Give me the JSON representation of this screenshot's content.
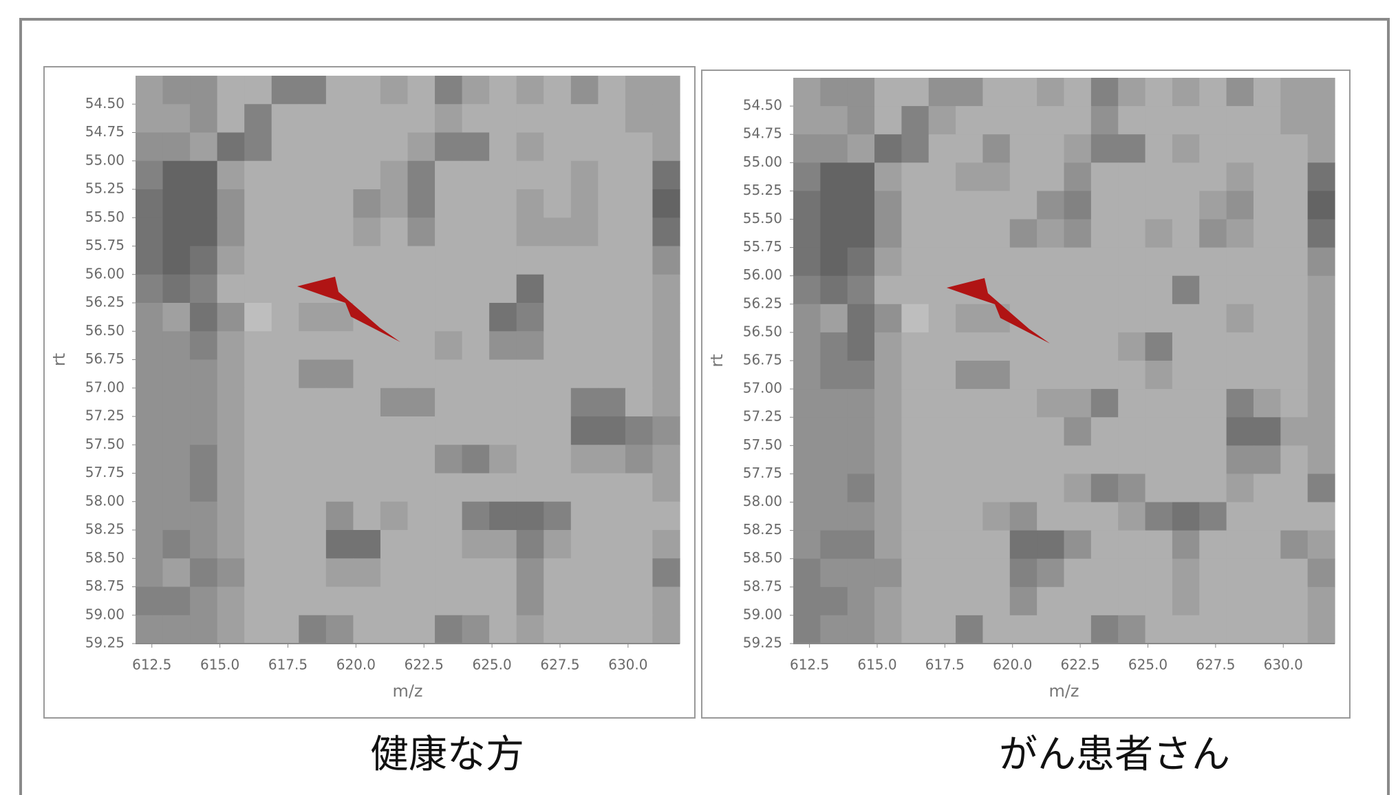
{
  "chart_data": [
    {
      "type": "heatmap",
      "caption": "健康な方",
      "xlabel": "m/z",
      "ylabel": "rt",
      "xlim": [
        611.9,
        631.9
      ],
      "ylim": [
        54.25,
        59.25
      ],
      "xticks": [
        612.5,
        {
          "value": 615.0,
          "label": "615.0"
        },
        617.5,
        {
          "value": 620.0,
          "label": "620.0"
        },
        622.5,
        {
          "value": 625.0,
          "label": "625.0"
        },
        627.5,
        {
          "value": 630.0,
          "label": "630.0"
        }
      ],
      "yticks": [
        {
          "value": 54.5,
          "label": "54.50"
        },
        {
          "value": 54.75,
          "label": "54.75"
        },
        {
          "value": 55.0,
          "label": "55.00"
        },
        {
          "value": 55.25,
          "label": "55.25"
        },
        {
          "value": 55.5,
          "label": "55.50"
        },
        {
          "value": 55.75,
          "label": "55.75"
        },
        {
          "value": 56.0,
          "label": "56.00"
        },
        {
          "value": 56.25,
          "label": "56.25"
        },
        {
          "value": 56.5,
          "label": "56.50"
        },
        {
          "value": 56.75,
          "label": "56.75"
        },
        {
          "value": 57.0,
          "label": "57.00"
        },
        {
          "value": 57.25,
          "label": "57.25"
        },
        {
          "value": 57.5,
          "label": "57.50"
        },
        {
          "value": 57.75,
          "label": "57.75"
        },
        {
          "value": 58.0,
          "label": "58.00"
        },
        {
          "value": 58.25,
          "label": "58.25"
        },
        {
          "value": 58.5,
          "label": "58.50"
        },
        {
          "value": 58.75,
          "label": "58.75"
        },
        {
          "value": 59.0,
          "label": "59.00"
        },
        {
          "value": 59.25,
          "label": "59.25"
        }
      ],
      "zlim": [
        0,
        9
      ],
      "colors": [
        "#dcdcdc",
        "#555555"
      ],
      "z": [
        [
          4,
          5,
          5,
          3,
          3,
          6,
          6,
          3,
          3,
          4,
          3,
          6,
          4,
          3,
          4,
          3,
          5,
          3,
          4,
          4
        ],
        [
          4,
          4,
          5,
          3,
          6,
          3,
          3,
          3,
          3,
          3,
          3,
          4,
          3,
          3,
          3,
          3,
          3,
          3,
          4,
          4
        ],
        [
          5,
          5,
          4,
          7,
          6,
          3,
          3,
          3,
          3,
          3,
          4,
          6,
          6,
          3,
          4,
          3,
          3,
          3,
          3,
          4
        ],
        [
          6,
          8,
          8,
          4,
          3,
          3,
          3,
          3,
          3,
          4,
          6,
          3,
          3,
          3,
          3,
          3,
          4,
          3,
          3,
          7
        ],
        [
          7,
          8,
          8,
          5,
          3,
          3,
          3,
          3,
          5,
          4,
          6,
          3,
          3,
          3,
          4,
          3,
          4,
          3,
          3,
          8
        ],
        [
          7,
          8,
          8,
          5,
          3,
          3,
          3,
          3,
          4,
          3,
          5,
          3,
          3,
          3,
          4,
          4,
          4,
          3,
          3,
          7
        ],
        [
          7,
          8,
          7,
          4,
          3,
          3,
          3,
          3,
          3,
          3,
          3,
          3,
          3,
          3,
          3,
          3,
          3,
          3,
          3,
          5
        ],
        [
          6,
          7,
          6,
          3,
          3,
          3,
          3,
          3,
          3,
          3,
          3,
          3,
          3,
          3,
          7,
          3,
          3,
          3,
          3,
          4
        ],
        [
          5,
          4,
          7,
          5,
          2,
          3,
          4,
          4,
          3,
          3,
          3,
          3,
          3,
          7,
          6,
          3,
          3,
          3,
          3,
          4
        ],
        [
          5,
          5,
          6,
          4,
          3,
          3,
          3,
          3,
          3,
          3,
          3,
          4,
          3,
          5,
          5,
          3,
          3,
          3,
          3,
          4
        ],
        [
          5,
          5,
          5,
          4,
          3,
          3,
          5,
          5,
          3,
          3,
          3,
          3,
          3,
          3,
          3,
          3,
          3,
          3,
          3,
          4
        ],
        [
          5,
          5,
          5,
          4,
          3,
          3,
          3,
          3,
          3,
          5,
          5,
          3,
          3,
          3,
          3,
          3,
          6,
          6,
          3,
          4
        ],
        [
          5,
          5,
          5,
          4,
          3,
          3,
          3,
          3,
          3,
          3,
          3,
          3,
          3,
          3,
          3,
          3,
          7,
          7,
          6,
          5
        ],
        [
          5,
          5,
          6,
          4,
          3,
          3,
          3,
          3,
          3,
          3,
          3,
          5,
          6,
          4,
          3,
          3,
          4,
          4,
          5,
          4
        ],
        [
          5,
          5,
          6,
          4,
          3,
          3,
          3,
          3,
          3,
          3,
          3,
          3,
          3,
          3,
          3,
          3,
          3,
          3,
          3,
          4
        ],
        [
          5,
          5,
          5,
          4,
          3,
          3,
          3,
          5,
          3,
          4,
          3,
          3,
          6,
          7,
          7,
          6,
          3,
          3,
          3,
          3
        ],
        [
          5,
          6,
          5,
          4,
          3,
          3,
          3,
          7,
          7,
          3,
          3,
          3,
          4,
          4,
          6,
          4,
          3,
          3,
          3,
          4
        ],
        [
          5,
          4,
          6,
          5,
          3,
          3,
          3,
          4,
          4,
          3,
          3,
          3,
          3,
          3,
          5,
          3,
          3,
          3,
          3,
          6
        ],
        [
          6,
          6,
          5,
          4,
          3,
          3,
          3,
          3,
          3,
          3,
          3,
          3,
          3,
          3,
          5,
          3,
          3,
          3,
          3,
          4
        ],
        [
          5,
          5,
          5,
          4,
          3,
          3,
          6,
          5,
          3,
          3,
          3,
          6,
          5,
          3,
          4,
          3,
          3,
          3,
          3,
          4
        ]
      ]
    },
    {
      "type": "heatmap",
      "caption": "がん患者さん",
      "xlabel": "m/z",
      "ylabel": "rt",
      "xlim": [
        611.9,
        631.9
      ],
      "ylim": [
        54.25,
        59.25
      ],
      "xticks": [
        612.5,
        {
          "value": 615.0,
          "label": "615.0"
        },
        617.5,
        {
          "value": 620.0,
          "label": "620.0"
        },
        622.5,
        {
          "value": 625.0,
          "label": "625.0"
        },
        627.5,
        {
          "value": 630.0,
          "label": "630.0"
        }
      ],
      "yticks": [
        {
          "value": 54.5,
          "label": "54.50"
        },
        {
          "value": 54.75,
          "label": "54.75"
        },
        {
          "value": 55.0,
          "label": "55.00"
        },
        {
          "value": 55.25,
          "label": "55.25"
        },
        {
          "value": 55.5,
          "label": "55.50"
        },
        {
          "value": 55.75,
          "label": "55.75"
        },
        {
          "value": 56.0,
          "label": "56.00"
        },
        {
          "value": 56.25,
          "label": "56.25"
        },
        {
          "value": 56.5,
          "label": "56.50"
        },
        {
          "value": 56.75,
          "label": "56.75"
        },
        {
          "value": 57.0,
          "label": "57.00"
        },
        {
          "value": 57.25,
          "label": "57.25"
        },
        {
          "value": 57.5,
          "label": "57.50"
        },
        {
          "value": 57.75,
          "label": "57.75"
        },
        {
          "value": 58.0,
          "label": "58.00"
        },
        {
          "value": 58.25,
          "label": "58.25"
        },
        {
          "value": 58.5,
          "label": "58.50"
        },
        {
          "value": 58.75,
          "label": "58.75"
        },
        {
          "value": 59.0,
          "label": "59.00"
        },
        {
          "value": 59.25,
          "label": "59.25"
        }
      ],
      "zlim": [
        0,
        9
      ],
      "colors": [
        "#dcdcdc",
        "#555555"
      ],
      "z": [
        [
          4,
          5,
          5,
          3,
          3,
          5,
          5,
          3,
          3,
          4,
          3,
          6,
          4,
          3,
          4,
          3,
          5,
          3,
          4,
          4
        ],
        [
          4,
          4,
          5,
          3,
          6,
          4,
          3,
          3,
          3,
          3,
          3,
          5,
          3,
          3,
          3,
          3,
          3,
          3,
          4,
          4
        ],
        [
          5,
          5,
          4,
          7,
          6,
          3,
          3,
          5,
          3,
          3,
          4,
          6,
          6,
          3,
          4,
          3,
          3,
          3,
          3,
          4
        ],
        [
          6,
          8,
          8,
          4,
          3,
          3,
          4,
          4,
          3,
          3,
          5,
          3,
          3,
          3,
          3,
          3,
          4,
          3,
          3,
          7
        ],
        [
          7,
          8,
          8,
          5,
          3,
          3,
          3,
          3,
          3,
          5,
          6,
          3,
          3,
          3,
          3,
          4,
          5,
          3,
          3,
          8
        ],
        [
          7,
          8,
          8,
          5,
          3,
          3,
          3,
          3,
          5,
          4,
          5,
          3,
          3,
          4,
          3,
          5,
          4,
          3,
          3,
          7
        ],
        [
          7,
          8,
          7,
          4,
          3,
          3,
          3,
          3,
          3,
          3,
          3,
          3,
          3,
          3,
          3,
          3,
          3,
          3,
          3,
          5
        ],
        [
          6,
          7,
          6,
          3,
          3,
          3,
          3,
          3,
          3,
          3,
          3,
          3,
          3,
          3,
          6,
          3,
          3,
          3,
          3,
          4
        ],
        [
          5,
          4,
          7,
          5,
          2,
          3,
          4,
          4,
          3,
          3,
          3,
          3,
          3,
          3,
          3,
          3,
          4,
          3,
          3,
          4
        ],
        [
          5,
          6,
          7,
          4,
          3,
          3,
          3,
          3,
          3,
          3,
          3,
          3,
          4,
          6,
          3,
          3,
          3,
          3,
          3,
          4
        ],
        [
          5,
          6,
          6,
          4,
          3,
          3,
          5,
          5,
          3,
          3,
          3,
          3,
          3,
          4,
          3,
          3,
          3,
          3,
          3,
          4
        ],
        [
          5,
          5,
          5,
          4,
          3,
          3,
          3,
          3,
          3,
          4,
          4,
          6,
          3,
          3,
          3,
          3,
          6,
          4,
          3,
          4
        ],
        [
          5,
          5,
          5,
          4,
          3,
          3,
          3,
          3,
          3,
          3,
          5,
          3,
          3,
          3,
          3,
          3,
          7,
          7,
          4,
          4
        ],
        [
          5,
          5,
          5,
          4,
          3,
          3,
          3,
          3,
          3,
          3,
          3,
          3,
          3,
          3,
          3,
          3,
          5,
          5,
          3,
          4
        ],
        [
          5,
          5,
          6,
          4,
          3,
          3,
          3,
          3,
          3,
          3,
          4,
          6,
          5,
          3,
          3,
          3,
          4,
          3,
          3,
          6
        ],
        [
          5,
          5,
          5,
          4,
          3,
          3,
          3,
          4,
          5,
          3,
          3,
          3,
          4,
          6,
          7,
          6,
          3,
          3,
          3,
          3
        ],
        [
          5,
          6,
          6,
          4,
          3,
          3,
          3,
          3,
          7,
          7,
          5,
          3,
          3,
          3,
          5,
          3,
          3,
          3,
          5,
          4
        ],
        [
          6,
          5,
          5,
          5,
          3,
          3,
          3,
          3,
          6,
          5,
          3,
          3,
          3,
          3,
          4,
          3,
          3,
          3,
          3,
          5
        ],
        [
          6,
          6,
          5,
          4,
          3,
          3,
          3,
          3,
          5,
          3,
          3,
          3,
          3,
          3,
          4,
          3,
          3,
          3,
          3,
          4
        ],
        [
          6,
          5,
          5,
          4,
          3,
          3,
          6,
          3,
          3,
          3,
          3,
          6,
          5,
          3,
          3,
          3,
          3,
          3,
          3,
          4
        ]
      ]
    }
  ]
}
